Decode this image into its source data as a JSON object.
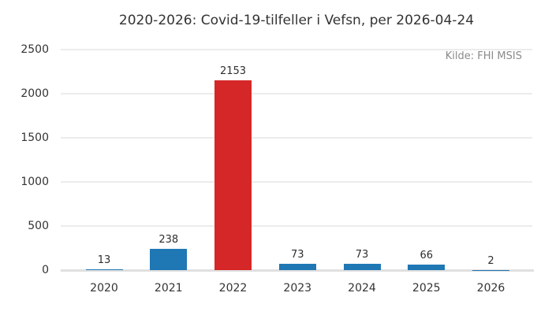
{
  "chart_data": {
    "type": "bar",
    "title": "2020-2026: Covid-19-tilfeller i Vefsn, per 2026-04-24",
    "annotation": "Kilde: FHI MSIS",
    "categories": [
      "2020",
      "2021",
      "2022",
      "2023",
      "2024",
      "2025",
      "2026"
    ],
    "values": [
      13,
      238,
      2153,
      73,
      73,
      66,
      2
    ],
    "bar_colors": [
      "#1f77b4",
      "#1f77b4",
      "#d62728",
      "#1f77b4",
      "#1f77b4",
      "#1f77b4",
      "#1f77b4"
    ],
    "yticks": [
      0,
      500,
      1000,
      1500,
      2000,
      2500
    ],
    "ylim": [
      0,
      2500
    ],
    "xlabel": "",
    "ylabel": "",
    "grid": true,
    "legend": "none"
  },
  "colors": {
    "bar_blue": "#1f77b4",
    "bar_red": "#d62728",
    "grid": "#ececec",
    "baseline": "#e0e0e0",
    "text": "#333333",
    "muted_text": "#8a8a8a",
    "background": "#ffffff"
  }
}
